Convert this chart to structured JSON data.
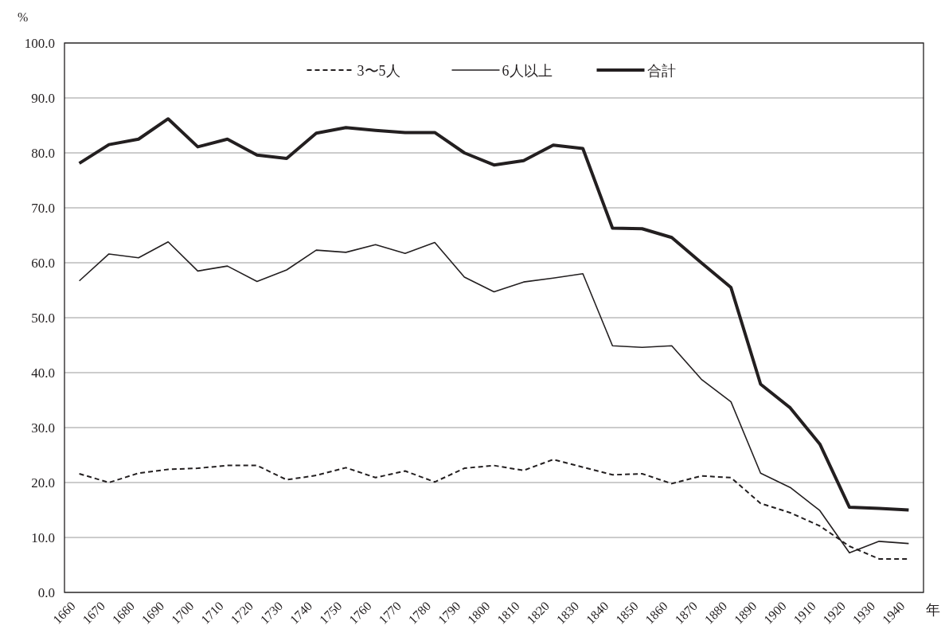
{
  "chart_data": {
    "type": "line",
    "ylabel": "%",
    "xlabel": "年",
    "categories": [
      "1660",
      "1670",
      "1680",
      "1690",
      "1700",
      "1710",
      "1720",
      "1730",
      "1740",
      "1750",
      "1760",
      "1770",
      "1780",
      "1790",
      "1800",
      "1810",
      "1820",
      "1830",
      "1840",
      "1850",
      "1860",
      "1870",
      "1880",
      "1890",
      "1900",
      "1910",
      "1920",
      "1930",
      "1940"
    ],
    "series": [
      {
        "name": "3〜5人",
        "color": "#231f20",
        "line_style": "dashed",
        "values": [
          21.6,
          20.0,
          21.7,
          22.4,
          22.6,
          23.1,
          23.1,
          20.5,
          21.3,
          22.7,
          20.9,
          22.1,
          20.1,
          22.6,
          23.1,
          22.2,
          24.2,
          22.8,
          21.4,
          21.6,
          19.8,
          21.2,
          20.9,
          16.2,
          14.5,
          12.1,
          8.4,
          6.1,
          6.1
        ]
      },
      {
        "name": "6人以上",
        "color": "#231f20",
        "line_style": "solid",
        "values": [
          56.7,
          61.6,
          60.9,
          63.8,
          58.5,
          59.4,
          56.6,
          58.7,
          62.3,
          61.9,
          63.3,
          61.7,
          63.7,
          57.4,
          54.7,
          56.5,
          57.2,
          58.0,
          44.9,
          44.6,
          44.9,
          38.8,
          34.7,
          21.7,
          19.1,
          14.9,
          7.2,
          9.3,
          8.9
        ]
      },
      {
        "name": "合計",
        "color": "#231f20",
        "line_style": "solid",
        "values": [
          78.1,
          81.5,
          82.5,
          86.2,
          81.1,
          82.5,
          79.6,
          79.0,
          83.6,
          84.6,
          84.1,
          83.7,
          83.7,
          80.0,
          77.8,
          78.6,
          81.4,
          80.8,
          66.3,
          66.2,
          64.6,
          60.0,
          55.5,
          37.9,
          33.6,
          27.0,
          15.5,
          15.3,
          15.0
        ]
      }
    ],
    "ylim": [
      0,
      100
    ],
    "yticks": [
      {
        "value": 0,
        "label": "0.0"
      },
      {
        "value": 10,
        "label": "10.0"
      },
      {
        "value": 20,
        "label": "20.0"
      },
      {
        "value": 30,
        "label": "30.0"
      },
      {
        "value": 40,
        "label": "40.0"
      },
      {
        "value": 50,
        "label": "50.0"
      },
      {
        "value": 60,
        "label": "60.0"
      },
      {
        "value": 70,
        "label": "70.0"
      },
      {
        "value": 80,
        "label": "80.0"
      },
      {
        "value": 90,
        "label": "90.0"
      },
      {
        "value": 100,
        "label": "100.0"
      }
    ],
    "grid": "y",
    "legend": "top",
    "marker": "none"
  }
}
